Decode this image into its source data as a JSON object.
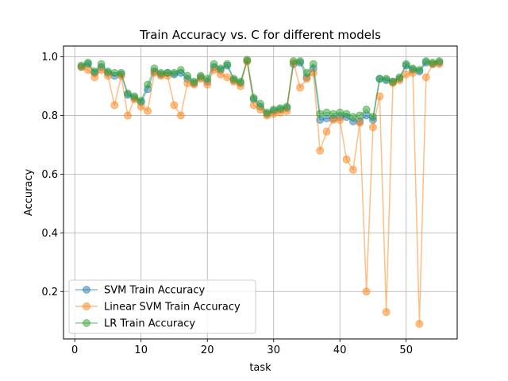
{
  "chart_data": {
    "type": "line",
    "title": "Train Accuracy vs. C for different models",
    "xlabel": "task",
    "ylabel": "Accuracy",
    "xlim": [
      -1.7,
      57.7
    ],
    "ylim": [
      0.0385,
      1.0365
    ],
    "x_ticks": [
      0,
      10,
      20,
      30,
      40,
      50
    ],
    "y_ticks": [
      0.2,
      0.4,
      0.6,
      0.8,
      1.0
    ],
    "x_tick_labels": [
      "0",
      "10",
      "20",
      "30",
      "40",
      "50"
    ],
    "y_tick_labels": [
      "0.2",
      "0.4",
      "0.6",
      "0.8",
      "1.0"
    ],
    "grid": true,
    "legend_position": "lower-left",
    "x": [
      1,
      2,
      3,
      4,
      5,
      6,
      7,
      8,
      9,
      10,
      11,
      12,
      13,
      14,
      15,
      16,
      17,
      18,
      19,
      20,
      21,
      22,
      23,
      24,
      25,
      26,
      27,
      28,
      29,
      30,
      31,
      32,
      33,
      34,
      35,
      36,
      37,
      38,
      39,
      40,
      41,
      42,
      43,
      44,
      45,
      46,
      47,
      48,
      49,
      50,
      51,
      52,
      53,
      54,
      55
    ],
    "series": [
      {
        "name": "SVM Train Accuracy",
        "color": "#1f77b4",
        "values": [
          0.965,
          0.975,
          0.945,
          0.965,
          0.945,
          0.935,
          0.94,
          0.87,
          0.86,
          0.845,
          0.89,
          0.95,
          0.94,
          0.945,
          0.94,
          0.945,
          0.925,
          0.91,
          0.93,
          0.915,
          0.965,
          0.955,
          0.97,
          0.92,
          0.91,
          0.985,
          0.855,
          0.83,
          0.805,
          0.815,
          0.82,
          0.825,
          0.975,
          0.98,
          0.93,
          0.96,
          0.785,
          0.79,
          0.79,
          0.795,
          0.795,
          0.78,
          0.78,
          0.8,
          0.785,
          0.925,
          0.92,
          0.915,
          0.925,
          0.97,
          0.955,
          0.95,
          0.98,
          0.975,
          0.98
        ]
      },
      {
        "name": "Linear SVM Train Accuracy",
        "color": "#ff7f0e",
        "values": [
          0.965,
          0.955,
          0.93,
          0.955,
          0.935,
          0.835,
          0.935,
          0.8,
          0.855,
          0.83,
          0.815,
          0.945,
          0.935,
          0.935,
          0.835,
          0.8,
          0.91,
          0.905,
          0.925,
          0.905,
          0.955,
          0.94,
          0.93,
          0.915,
          0.9,
          0.985,
          0.835,
          0.82,
          0.8,
          0.805,
          0.81,
          0.815,
          0.98,
          0.895,
          0.925,
          0.945,
          0.68,
          0.745,
          0.785,
          0.785,
          0.65,
          0.615,
          0.775,
          0.2,
          0.76,
          0.865,
          0.13,
          0.91,
          0.92,
          0.94,
          0.945,
          0.09,
          0.93,
          0.975,
          0.975
        ]
      },
      {
        "name": "LR Train Accuracy",
        "color": "#2ca02c",
        "values": [
          0.97,
          0.98,
          0.95,
          0.975,
          0.95,
          0.945,
          0.945,
          0.875,
          0.865,
          0.85,
          0.905,
          0.96,
          0.945,
          0.945,
          0.945,
          0.955,
          0.935,
          0.915,
          0.935,
          0.925,
          0.975,
          0.96,
          0.975,
          0.925,
          0.915,
          0.99,
          0.86,
          0.84,
          0.81,
          0.82,
          0.825,
          0.83,
          0.985,
          0.985,
          0.945,
          0.975,
          0.805,
          0.81,
          0.805,
          0.81,
          0.805,
          0.795,
          0.8,
          0.82,
          0.795,
          0.925,
          0.925,
          0.915,
          0.93,
          0.975,
          0.96,
          0.955,
          0.985,
          0.98,
          0.985
        ]
      }
    ]
  }
}
